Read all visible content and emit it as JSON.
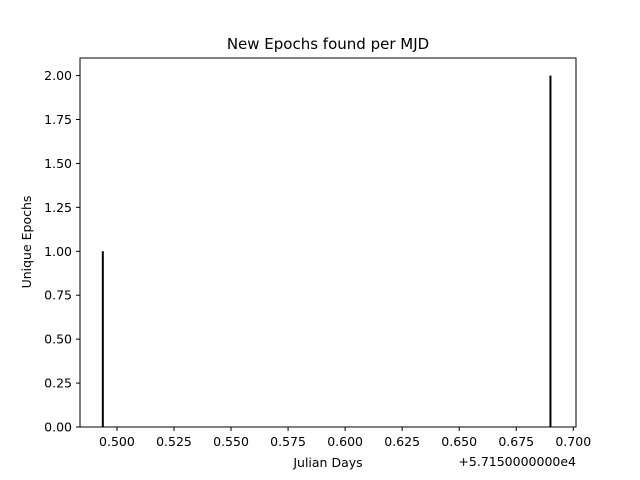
{
  "chart_data": {
    "type": "bar",
    "title": "New Epochs found per MJD",
    "xlabel": "Julian Days",
    "ylabel": "Unique Epochs",
    "x_offset_label": "+5.7150000000e4",
    "x_offset": 57150,
    "xlim": [
      0.4838,
      0.7012
    ],
    "ylim": [
      0,
      2.1
    ],
    "x_ticks": [
      0.5,
      0.525,
      0.55,
      0.575,
      0.6,
      0.625,
      0.65,
      0.675,
      0.7
    ],
    "x_tick_labels": [
      "0.500",
      "0.525",
      "0.550",
      "0.575",
      "0.600",
      "0.625",
      "0.650",
      "0.675",
      "0.700"
    ],
    "y_ticks": [
      0,
      0.25,
      0.5,
      0.75,
      1.0,
      1.25,
      1.5,
      1.75,
      2.0
    ],
    "y_tick_labels": [
      "0.00",
      "0.25",
      "0.50",
      "0.75",
      "1.00",
      "1.25",
      "1.50",
      "1.75",
      "2.00"
    ],
    "grid": false,
    "bar_color": "#000000",
    "series": [
      {
        "x": [
          0.4938,
          0.69
        ],
        "values": [
          1,
          2
        ]
      }
    ]
  }
}
